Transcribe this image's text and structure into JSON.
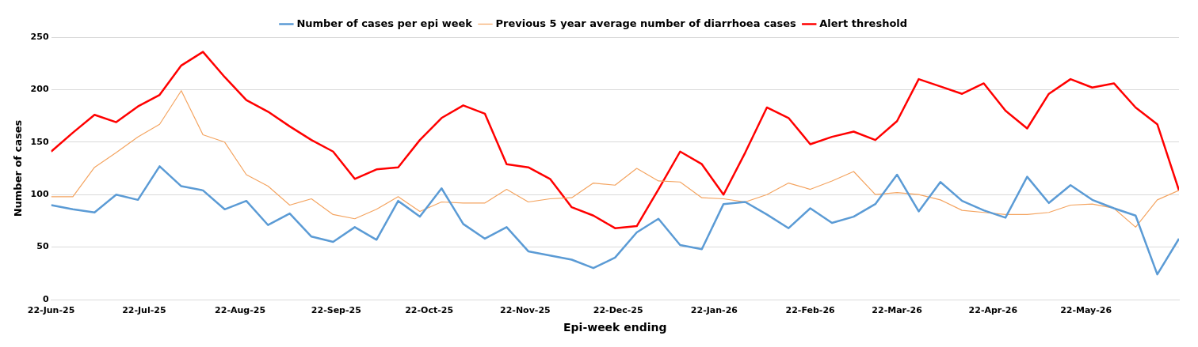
{
  "chart_data": {
    "type": "line",
    "xlabel": "Epi-week ending",
    "ylabel": "Number of cases",
    "x": [
      "2025-06-22",
      "2025-06-29",
      "2025-07-06",
      "2025-07-13",
      "2025-07-20",
      "2025-07-27",
      "2025-08-03",
      "2025-08-10",
      "2025-08-17",
      "2025-08-24",
      "2025-08-31",
      "2025-09-07",
      "2025-09-14",
      "2025-09-21",
      "2025-09-28",
      "2025-10-05",
      "2025-10-12",
      "2025-10-19",
      "2025-10-26",
      "2025-11-02",
      "2025-11-09",
      "2025-11-16",
      "2025-11-23",
      "2025-11-30",
      "2025-12-07",
      "2025-12-14",
      "2025-12-21",
      "2025-12-28",
      "2026-01-04",
      "2026-01-11",
      "2026-01-18",
      "2026-01-25",
      "2026-02-01",
      "2026-02-08",
      "2026-02-15",
      "2026-02-22",
      "2026-03-01",
      "2026-03-08",
      "2026-03-15",
      "2026-03-22",
      "2026-03-29",
      "2026-04-05",
      "2026-04-12",
      "2026-04-19",
      "2026-04-26",
      "2026-05-03",
      "2026-05-10",
      "2026-05-17",
      "2026-05-24",
      "2026-05-31",
      "2026-06-07",
      "2026-06-14",
      "2026-06-21"
    ],
    "series": [
      {
        "name": "Number of cases per epi week",
        "color": "#5b9bd5",
        "values": [
          90,
          86,
          83,
          100,
          95,
          127,
          108,
          104,
          86,
          94,
          71,
          82,
          60,
          55,
          69,
          57,
          94,
          79,
          106,
          72,
          58,
          69,
          46,
          42,
          38,
          30,
          40,
          64,
          77,
          52,
          48,
          91,
          93,
          81,
          68,
          87,
          73,
          79,
          91,
          119,
          84,
          112,
          94,
          85,
          78,
          117,
          92,
          109,
          95,
          87,
          80,
          24,
          58
        ]
      },
      {
        "name": "Previous 5 year average number of diarrhoea cases",
        "color": "#f4a460",
        "values": [
          98,
          98,
          126,
          140,
          155,
          167,
          199,
          157,
          150,
          119,
          108,
          90,
          96,
          81,
          77,
          86,
          98,
          84,
          93,
          92,
          92,
          105,
          93,
          96,
          97,
          111,
          109,
          125,
          113,
          112,
          97,
          96,
          93,
          100,
          111,
          105,
          113,
          122,
          100,
          102,
          100,
          95,
          85,
          83,
          81,
          81,
          83,
          90,
          91,
          87,
          69,
          95,
          104
        ]
      },
      {
        "name": "Alert threshold",
        "color": "#ff0000",
        "values": [
          141,
          159,
          176,
          169,
          184,
          195,
          223,
          236,
          212,
          190,
          179,
          165,
          152,
          141,
          115,
          124,
          126,
          152,
          173,
          185,
          177,
          129,
          126,
          115,
          88,
          80,
          68,
          70,
          105,
          141,
          129,
          100,
          140,
          183,
          173,
          148,
          155,
          160,
          152,
          170,
          210,
          203,
          196,
          206,
          180,
          163,
          196,
          210,
          202,
          206,
          183,
          167,
          104
        ]
      }
    ],
    "xlim": [
      "2025-06-22",
      "2026-06-21"
    ],
    "xticks": [
      {
        "value": "2025-06-22",
        "label": "22-Jun-25"
      },
      {
        "value": "2025-07-22",
        "label": "22-Jul-25"
      },
      {
        "value": "2025-08-22",
        "label": "22-Aug-25"
      },
      {
        "value": "2025-09-22",
        "label": "22-Sep-25"
      },
      {
        "value": "2025-10-22",
        "label": "22-Oct-25"
      },
      {
        "value": "2025-11-22",
        "label": "22-Nov-25"
      },
      {
        "value": "2025-12-22",
        "label": "22-Dec-25"
      },
      {
        "value": "2026-01-22",
        "label": "22-Jan-26"
      },
      {
        "value": "2026-02-22",
        "label": "22-Feb-26"
      },
      {
        "value": "2026-03-22",
        "label": "22-Mar-26"
      },
      {
        "value": "2026-04-22",
        "label": "22-Apr-26"
      },
      {
        "value": "2026-05-22",
        "label": "22-May-26"
      }
    ],
    "ylim": [
      0,
      250
    ],
    "yticks": [
      0,
      50,
      100,
      150,
      200,
      250
    ],
    "grid": "y",
    "legend": "top",
    "marker": "none",
    "line_style": "solid"
  }
}
